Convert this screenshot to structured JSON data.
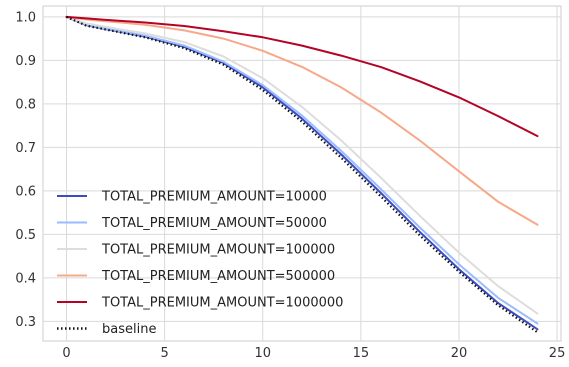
{
  "chart_data": {
    "type": "line",
    "title": "",
    "xlabel": "",
    "ylabel": "",
    "xlim": [
      -1.2,
      25.2
    ],
    "ylim": [
      0.255,
      1.025
    ],
    "xticks": [
      0,
      5,
      10,
      15,
      20,
      25
    ],
    "yticks": [
      0.3,
      0.4,
      0.5,
      0.6,
      0.7,
      0.8,
      0.9,
      1.0
    ],
    "grid": true,
    "legend": "lower-left",
    "series": [
      {
        "name": "TOTAL_PREMIUM_AMOUNT=10000",
        "color": "#3b4cc0",
        "style": "solid",
        "x": [
          0,
          1,
          2,
          4,
          6,
          8,
          10,
          12,
          14,
          16,
          18,
          20,
          22,
          24
        ],
        "y": [
          1.0,
          0.981,
          0.972,
          0.955,
          0.931,
          0.894,
          0.838,
          0.766,
          0.684,
          0.596,
          0.506,
          0.42,
          0.342,
          0.282
        ]
      },
      {
        "name": "TOTAL_PREMIUM_AMOUNT=50000",
        "color": "#9abbff",
        "style": "solid",
        "x": [
          0,
          1,
          2,
          4,
          6,
          8,
          10,
          12,
          14,
          16,
          18,
          20,
          22,
          24
        ],
        "y": [
          1.0,
          0.982,
          0.973,
          0.957,
          0.934,
          0.897,
          0.843,
          0.773,
          0.692,
          0.605,
          0.516,
          0.431,
          0.354,
          0.295
        ]
      },
      {
        "name": "TOTAL_PREMIUM_AMOUNT=100000",
        "color": "#dddddd",
        "style": "solid",
        "x": [
          0,
          1,
          2,
          4,
          6,
          8,
          10,
          12,
          14,
          16,
          18,
          20,
          22,
          24
        ],
        "y": [
          1.0,
          0.985,
          0.977,
          0.962,
          0.942,
          0.909,
          0.859,
          0.793,
          0.716,
          0.631,
          0.543,
          0.458,
          0.381,
          0.318
        ]
      },
      {
        "name": "TOTAL_PREMIUM_AMOUNT=500000",
        "color": "#f7a889",
        "style": "solid",
        "x": [
          0,
          1,
          2,
          4,
          6,
          8,
          10,
          12,
          14,
          16,
          18,
          20,
          22,
          24
        ],
        "y": [
          1.0,
          0.994,
          0.99,
          0.982,
          0.969,
          0.95,
          0.922,
          0.885,
          0.838,
          0.781,
          0.716,
          0.645,
          0.575,
          0.522
        ]
      },
      {
        "name": "TOTAL_PREMIUM_AMOUNT=1000000",
        "color": "#b40426",
        "style": "solid",
        "x": [
          0,
          2,
          4,
          6,
          8,
          10,
          12,
          14,
          16,
          18,
          20,
          22,
          24
        ],
        "y": [
          1.0,
          0.993,
          0.987,
          0.979,
          0.967,
          0.953,
          0.934,
          0.911,
          0.885,
          0.852,
          0.815,
          0.772,
          0.726
        ]
      },
      {
        "name": "baseline",
        "color": "#111111",
        "style": "dotted",
        "x": [
          0,
          1,
          2,
          4,
          6,
          8,
          10,
          12,
          14,
          16,
          18,
          20,
          22,
          24
        ],
        "y": [
          1.0,
          0.98,
          0.971,
          0.953,
          0.928,
          0.89,
          0.832,
          0.759,
          0.676,
          0.588,
          0.498,
          0.414,
          0.337,
          0.275
        ]
      }
    ]
  }
}
